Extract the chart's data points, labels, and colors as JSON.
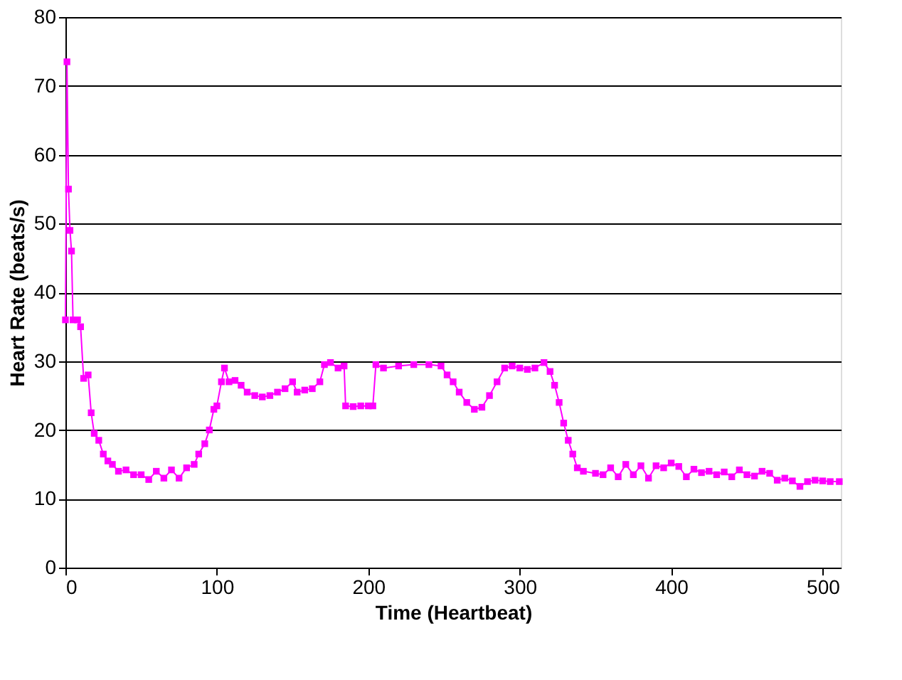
{
  "chart_data": {
    "type": "line",
    "xlabel": "Time (Heartbeat)",
    "ylabel": "Heart Rate (beats/s)",
    "xlim": [
      0,
      512
    ],
    "xticks": [
      0,
      100,
      200,
      300,
      400,
      500
    ],
    "ylim": [
      0,
      80
    ],
    "yticks": [
      0,
      10,
      20,
      30,
      40,
      50,
      60,
      70,
      80
    ],
    "grid": "y",
    "marker": "square",
    "line_style": "solid",
    "x": [
      0,
      1,
      2,
      3,
      4,
      5,
      8,
      10,
      12,
      15,
      17,
      19,
      22,
      25,
      28,
      31,
      35,
      40,
      45,
      50,
      55,
      60,
      65,
      70,
      75,
      80,
      85,
      88,
      92,
      95,
      98,
      100,
      103,
      105,
      108,
      112,
      116,
      120,
      125,
      130,
      135,
      140,
      145,
      150,
      153,
      158,
      163,
      168,
      171,
      175,
      180,
      184,
      185,
      190,
      195,
      200,
      203,
      205,
      210,
      220,
      230,
      240,
      248,
      252,
      256,
      260,
      265,
      270,
      275,
      280,
      285,
      290,
      295,
      300,
      305,
      310,
      316,
      320,
      323,
      326,
      329,
      332,
      335,
      338,
      342,
      350,
      355,
      360,
      365,
      370,
      375,
      380,
      385,
      390,
      395,
      400,
      405,
      410,
      415,
      420,
      425,
      430,
      435,
      440,
      445,
      450,
      455,
      460,
      465,
      470,
      475,
      480,
      485,
      490,
      495,
      500,
      505,
      511
    ],
    "series": [
      {
        "color": "#ff00ff",
        "values": [
          36,
          73.5,
          55,
          49,
          46,
          36,
          36,
          35,
          27.5,
          28,
          22.5,
          19.5,
          18.5,
          16.5,
          15.5,
          15,
          14,
          14.2,
          13.5,
          13.5,
          12.8,
          14,
          13,
          14.2,
          13,
          14.5,
          15,
          16.5,
          18,
          20,
          23,
          23.5,
          27,
          29,
          27,
          27.2,
          26.5,
          25.5,
          25,
          24.8,
          25,
          25.5,
          26,
          27,
          25.5,
          25.8,
          26,
          27,
          29.5,
          29.8,
          29,
          29.3,
          23.5,
          23.4,
          23.5,
          23.5,
          23.5,
          29.5,
          29,
          29.3,
          29.5,
          29.5,
          29.3,
          28,
          27,
          25.5,
          24,
          23,
          23.3,
          25,
          27,
          29,
          29.3,
          29,
          28.8,
          29,
          29.8,
          28.5,
          26.5,
          24,
          21,
          18.5,
          16.5,
          14.5,
          14,
          13.7,
          13.5,
          14.5,
          13.2,
          15,
          13.5,
          14.8,
          13,
          14.8,
          14.5,
          15.2,
          14.7,
          13.2,
          14.3,
          13.8,
          14,
          13.5,
          13.9,
          13.2,
          14.2,
          13.5,
          13.3,
          14,
          13.7,
          12.7,
          13,
          12.6,
          11.8,
          12.5,
          12.7,
          12.6,
          12.5,
          12.5
        ]
      }
    ]
  }
}
